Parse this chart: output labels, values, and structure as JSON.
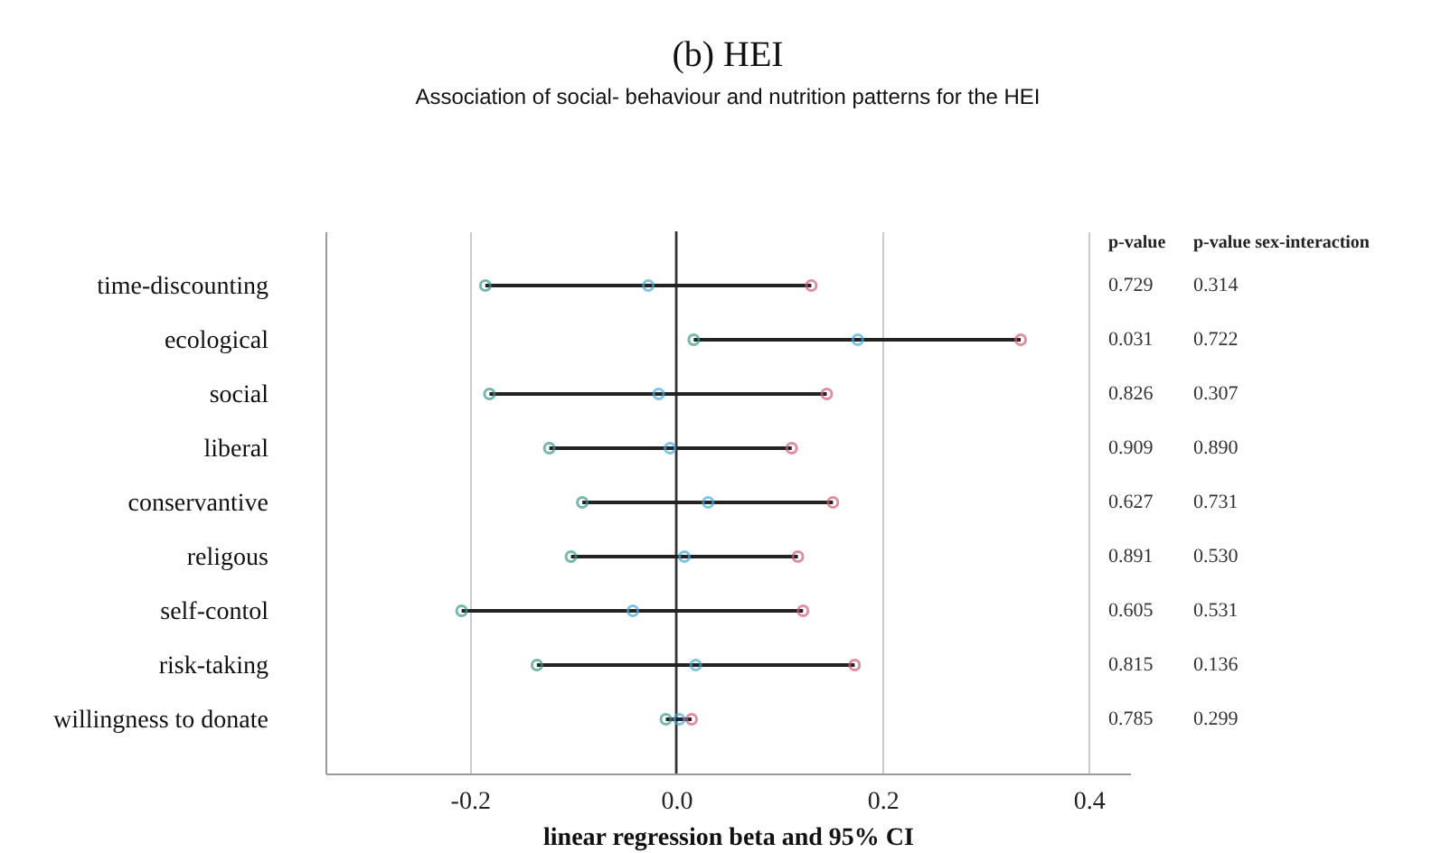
{
  "chart_data": {
    "type": "scatter",
    "orientation": "horizontal",
    "title": "(b) HEI",
    "subtitle": "Association of social- behaviour and nutrition patterns for the HEI",
    "xlabel": "linear regression beta and 95% CI",
    "categories": [
      "time-discounting",
      "ecological",
      "social",
      "liberal",
      "conservantive",
      "religous",
      "self-contol",
      "risk-taking",
      "willingness to donate"
    ],
    "series": [
      {
        "color": "#3a9a8a",
        "values": [
          -0.185,
          0.017,
          -0.181,
          -0.123,
          -0.091,
          -0.102,
          -0.208,
          -0.135,
          -0.01
        ]
      },
      {
        "color": "#4aaad8",
        "values": [
          -0.027,
          0.176,
          -0.017,
          -0.006,
          0.031,
          0.008,
          -0.042,
          0.019,
          0.003
        ]
      },
      {
        "color": "#d0607a",
        "values": [
          0.131,
          0.334,
          0.146,
          0.112,
          0.152,
          0.118,
          0.123,
          0.173,
          0.015
        ]
      }
    ],
    "xlim": [
      -0.34,
      0.44
    ],
    "xticks": [
      -0.2,
      {
        "value": 0,
        "label": "0.0"
      },
      0.2,
      0.4
    ],
    "grid": "x",
    "marker": "circle",
    "ref_lines": [
      {
        "axis": "x",
        "value": 0,
        "color": "#333333"
      }
    ],
    "annotations": [
      "p-value",
      "p-value sex-interaction",
      "0.729",
      "0.314",
      "0.031",
      "0.722",
      "0.826",
      "0.307",
      "0.909",
      "0.890",
      "0.627",
      "0.731",
      "0.891",
      "0.530",
      "0.605",
      "0.531",
      "0.815",
      "0.136",
      "0.785",
      "0.299"
    ]
  }
}
